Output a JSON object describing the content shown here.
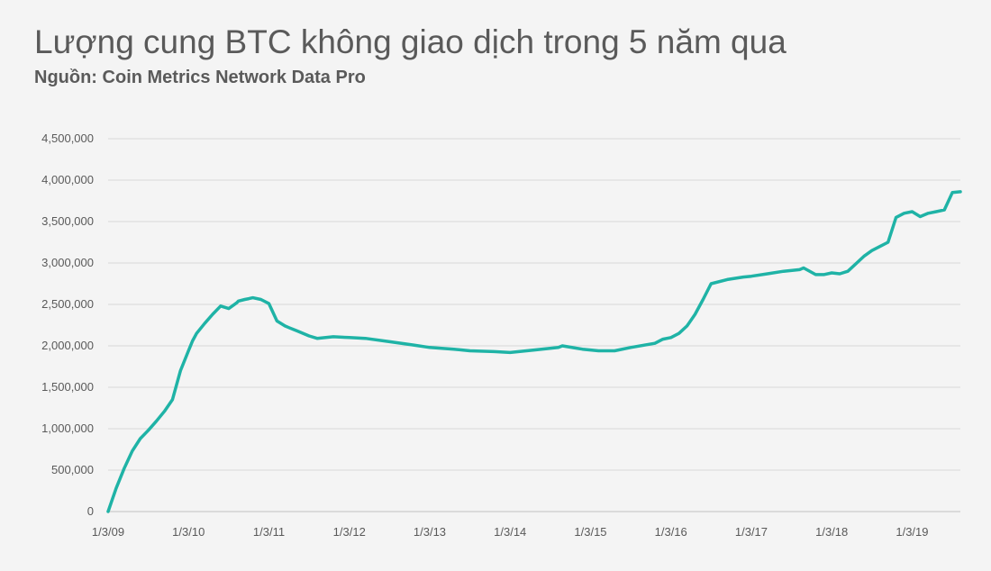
{
  "chart_data": {
    "type": "line",
    "title": "Lượng cung BTC không giao dịch trong 5 năm qua",
    "subtitle": "Nguồn: Coin Metrics Network Data Pro",
    "xlabel": "",
    "ylabel": "",
    "ylim": [
      0,
      4500000
    ],
    "y_ticks": [
      0,
      500000,
      1000000,
      1500000,
      2000000,
      2500000,
      3000000,
      3500000,
      4000000,
      4500000
    ],
    "y_tick_labels": [
      "0",
      "500,000",
      "1,000,000",
      "1,500,000",
      "2,000,000",
      "2,500,000",
      "3,000,000",
      "3,500,000",
      "4,000,000",
      "4,500,000"
    ],
    "x_tick_labels": [
      "1/3/09",
      "1/3/10",
      "1/3/11",
      "1/3/12",
      "1/3/13",
      "1/3/14",
      "1/3/15",
      "1/3/16",
      "1/3/17",
      "1/3/18",
      "1/3/19"
    ],
    "xlim": [
      2009.0,
      2019.6
    ],
    "grid": true,
    "line_color": "#1fb3a6",
    "series": [
      {
        "x": [
          2009.0,
          2009.1,
          2009.2,
          2009.3,
          2009.4,
          2009.5,
          2009.6,
          2009.7,
          2009.8,
          2009.9,
          2010.0,
          2010.05,
          2010.1,
          2010.2,
          2010.3,
          2010.4,
          2010.5,
          2010.6,
          2010.62,
          2010.7,
          2010.75,
          2010.8,
          2010.9,
          2011.0,
          2011.1,
          2011.2,
          2011.25,
          2011.3,
          2011.35,
          2011.5,
          2011.6,
          2011.8,
          2012.0,
          2012.2,
          2012.5,
          2012.8,
          2013.0,
          2013.3,
          2013.5,
          2013.8,
          2014.0,
          2014.3,
          2014.6,
          2014.65,
          2014.9,
          2015.0,
          2015.1,
          2015.3,
          2015.5,
          2015.8,
          2015.9,
          2016.0,
          2016.1,
          2016.2,
          2016.3,
          2016.4,
          2016.5,
          2016.7,
          2016.9,
          2017.0,
          2017.2,
          2017.4,
          2017.6,
          2017.65,
          2017.8,
          2017.9,
          2018.0,
          2018.1,
          2018.2,
          2018.4,
          2018.5,
          2018.6,
          2018.7,
          2018.8,
          2018.9,
          2019.0,
          2019.1,
          2019.2,
          2019.3,
          2019.4,
          2019.5,
          2019.6
        ],
        "y": [
          0,
          280000,
          520000,
          730000,
          880000,
          980000,
          1090000,
          1210000,
          1350000,
          1700000,
          1940000,
          2060000,
          2150000,
          2270000,
          2380000,
          2480000,
          2450000,
          2520000,
          2540000,
          2560000,
          2570000,
          2580000,
          2560000,
          2510000,
          2300000,
          2240000,
          2220000,
          2200000,
          2180000,
          2120000,
          2090000,
          2110000,
          2100000,
          2090000,
          2050000,
          2010000,
          1980000,
          1960000,
          1940000,
          1930000,
          1920000,
          1950000,
          1980000,
          2000000,
          1960000,
          1950000,
          1940000,
          1940000,
          1980000,
          2030000,
          2080000,
          2100000,
          2150000,
          2240000,
          2380000,
          2560000,
          2750000,
          2800000,
          2830000,
          2840000,
          2870000,
          2900000,
          2920000,
          2940000,
          2860000,
          2860000,
          2880000,
          2870000,
          2900000,
          3080000,
          3150000,
          3200000,
          3250000,
          3550000,
          3600000,
          3620000,
          3560000,
          3600000,
          3620000,
          3640000,
          3850000,
          3860000
        ]
      }
    ]
  }
}
